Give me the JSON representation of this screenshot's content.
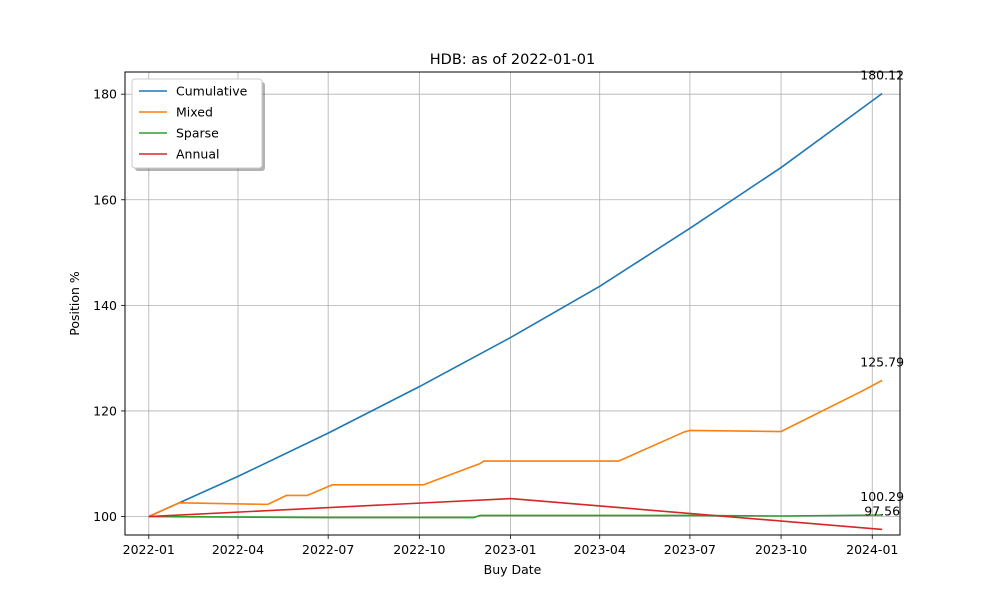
{
  "chart_data": {
    "type": "line",
    "title": "HDB: as of 2022-01-01",
    "xlabel": "Buy Date",
    "ylabel": "Position %",
    "x_type": "date",
    "xlim": [
      "2021-12-08",
      "2024-01-29"
    ],
    "ylim": [
      96.5,
      184.2
    ],
    "x_ticks": [
      "2022-01-01",
      "2022-04-01",
      "2022-07-01",
      "2022-10-01",
      "2023-01-01",
      "2023-04-01",
      "2023-07-01",
      "2023-10-01",
      "2024-01-01"
    ],
    "x_tick_labels": [
      "2022-01",
      "2022-04",
      "2022-07",
      "2022-10",
      "2023-01",
      "2023-04",
      "2023-07",
      "2023-10",
      "2024-01"
    ],
    "y_ticks": [
      100,
      120,
      140,
      160,
      180
    ],
    "y_tick_labels": [
      "100",
      "120",
      "140",
      "160",
      "180"
    ],
    "grid": true,
    "legend_position": "top-left",
    "series": [
      {
        "name": "Cumulative",
        "color": "#1f77b4",
        "points": [
          [
            "2022-01-01",
            100.0
          ],
          [
            "2022-04-01",
            107.6
          ],
          [
            "2022-07-01",
            115.8
          ],
          [
            "2022-10-01",
            124.6
          ],
          [
            "2023-01-01",
            133.9
          ],
          [
            "2023-04-01",
            143.6
          ],
          [
            "2023-07-01",
            154.6
          ],
          [
            "2023-10-01",
            166.1
          ],
          [
            "2024-01-11",
            180.12
          ]
        ]
      },
      {
        "name": "Mixed",
        "color": "#ff7f0e",
        "points": [
          [
            "2022-01-01",
            100.0
          ],
          [
            "2022-02-01",
            102.6
          ],
          [
            "2022-05-01",
            102.3
          ],
          [
            "2022-05-20",
            104.0
          ],
          [
            "2022-06-10",
            104.0
          ],
          [
            "2022-07-05",
            106.0
          ],
          [
            "2022-10-05",
            106.0
          ],
          [
            "2022-11-25",
            109.6
          ],
          [
            "2022-12-01",
            110.0
          ],
          [
            "2022-12-05",
            110.5
          ],
          [
            "2023-04-20",
            110.5
          ],
          [
            "2023-06-25",
            116.0
          ],
          [
            "2023-07-01",
            116.3
          ],
          [
            "2023-10-01",
            116.1
          ],
          [
            "2023-12-20",
            123.6
          ],
          [
            "2024-01-11",
            125.79
          ]
        ]
      },
      {
        "name": "Sparse",
        "color": "#2ca02c",
        "points": [
          [
            "2022-01-01",
            100.0
          ],
          [
            "2022-07-01",
            99.8
          ],
          [
            "2022-11-25",
            99.8
          ],
          [
            "2022-12-01",
            100.2
          ],
          [
            "2023-07-01",
            100.2
          ],
          [
            "2023-10-01",
            100.1
          ],
          [
            "2024-01-11",
            100.29
          ]
        ]
      },
      {
        "name": "Annual",
        "color": "#d62728",
        "points": [
          [
            "2022-01-01",
            100.0
          ],
          [
            "2023-01-01",
            103.4
          ],
          [
            "2024-01-11",
            97.56
          ]
        ]
      }
    ],
    "annotations": [
      {
        "text": "180.12",
        "x": "2024-01-11",
        "y": 180.12
      },
      {
        "text": "125.79",
        "x": "2024-01-11",
        "y": 125.79
      },
      {
        "text": "100.29",
        "x": "2024-01-11",
        "y": 100.29
      },
      {
        "text": "97.56",
        "x": "2024-01-11",
        "y": 97.56
      }
    ]
  }
}
